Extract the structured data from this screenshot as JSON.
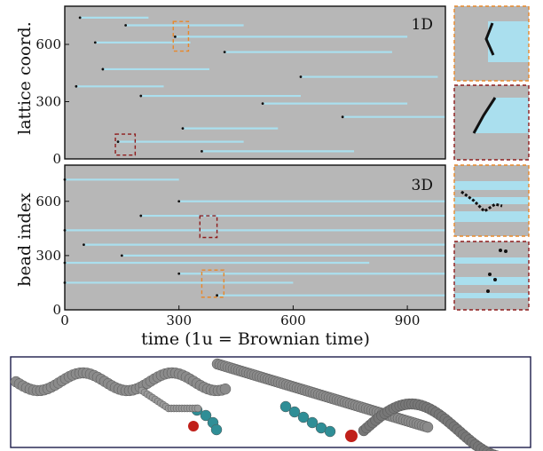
{
  "chart_data": [
    {
      "type": "heatmap",
      "panel": "top",
      "mode_label": "1D",
      "ylabel": "lattice coord.",
      "xlim": [
        0,
        1000
      ],
      "ylim": [
        0,
        800
      ],
      "yticks": [
        "0",
        "300",
        "600"
      ],
      "colors": {
        "background": "#b7b7b7",
        "trace": "#aadfee",
        "mark": "#111111"
      },
      "traces": [
        {
          "y": 740,
          "x0": 40,
          "x1": 220
        },
        {
          "y": 700,
          "x0": 160,
          "x1": 470
        },
        {
          "y": 640,
          "x0": 290,
          "x1": 900
        },
        {
          "y": 610,
          "x0": 80,
          "x1": 330
        },
        {
          "y": 560,
          "x0": 420,
          "x1": 860
        },
        {
          "y": 470,
          "x0": 100,
          "x1": 380
        },
        {
          "y": 430,
          "x0": 620,
          "x1": 980
        },
        {
          "y": 380,
          "x0": 30,
          "x1": 260
        },
        {
          "y": 330,
          "x0": 200,
          "x1": 620
        },
        {
          "y": 290,
          "x0": 520,
          "x1": 900
        },
        {
          "y": 220,
          "x0": 730,
          "x1": 1000
        },
        {
          "y": 160,
          "x0": 310,
          "x1": 560
        },
        {
          "y": 90,
          "x0": 140,
          "x1": 470
        },
        {
          "y": 40,
          "x0": 360,
          "x1": 760
        }
      ],
      "highlights": [
        {
          "color": "#e8882a",
          "x0": 285,
          "x1": 325,
          "y0": 565,
          "y1": 720
        },
        {
          "color": "#8e1b1b",
          "x0": 133,
          "x1": 185,
          "y0": 20,
          "y1": 130
        }
      ]
    },
    {
      "type": "heatmap",
      "panel": "bottom",
      "mode_label": "3D",
      "ylabel": "bead index",
      "xlabel": "time (1u = Brownian time)",
      "xlim": [
        0,
        1000
      ],
      "ylim": [
        0,
        800
      ],
      "xticks": [
        "0",
        "300",
        "600",
        "900"
      ],
      "yticks": [
        "0",
        "300",
        "600"
      ],
      "colors": {
        "background": "#b7b7b7",
        "trace": "#aadfee",
        "mark": "#111111"
      },
      "traces": [
        {
          "y": 720,
          "x0": 0,
          "x1": 300
        },
        {
          "y": 600,
          "x0": 300,
          "x1": 1000
        },
        {
          "y": 520,
          "x0": 200,
          "x1": 1000
        },
        {
          "y": 440,
          "x0": 0,
          "x1": 1000
        },
        {
          "y": 360,
          "x0": 50,
          "x1": 1000
        },
        {
          "y": 300,
          "x0": 150,
          "x1": 1000
        },
        {
          "y": 260,
          "x0": 0,
          "x1": 800
        },
        {
          "y": 200,
          "x0": 300,
          "x1": 1000
        },
        {
          "y": 150,
          "x0": 0,
          "x1": 600
        },
        {
          "y": 80,
          "x0": 400,
          "x1": 1000
        }
      ],
      "highlights": [
        {
          "color": "#8e1b1b",
          "x0": 355,
          "x1": 400,
          "y0": 400,
          "y1": 520
        },
        {
          "color": "#e8882a",
          "x0": 360,
          "x1": 418,
          "y0": 70,
          "y1": 220
        }
      ]
    }
  ]
}
